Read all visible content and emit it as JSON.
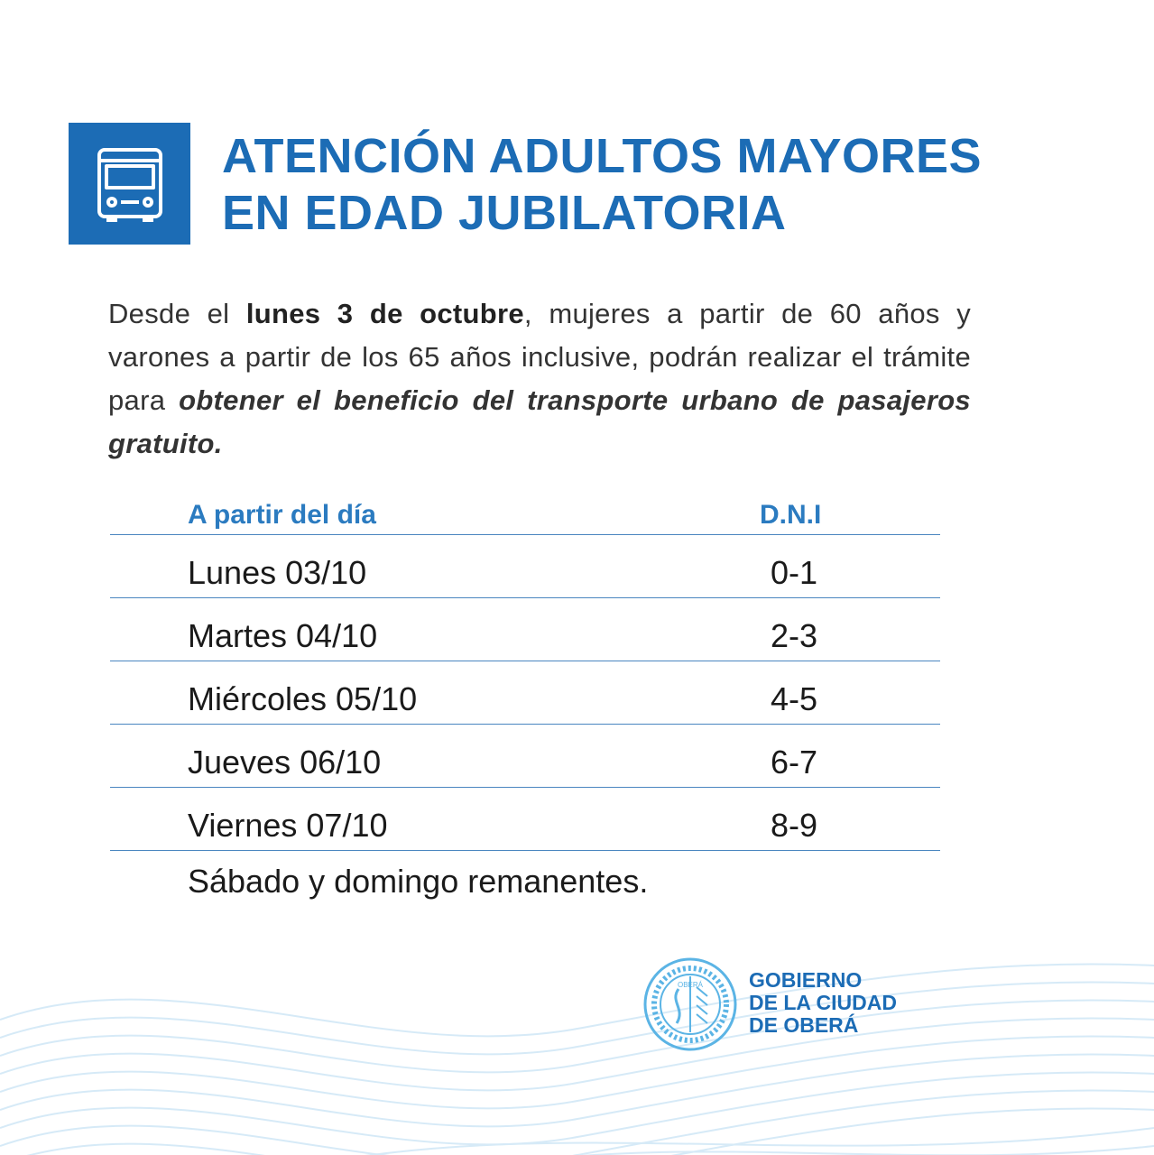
{
  "header": {
    "bus_icon": "bus-icon",
    "title_line1": "ATENCIÓN ADULTOS MAYORES",
    "title_line2": "EN EDAD JUBILATORIA"
  },
  "intro": {
    "part1": "Desde el ",
    "bold": "lunes 3 de octubre",
    "part2": ", mujeres a partir de 60 años y varones a partir de los 65 años inclusive, podrán realizar el trámite para ",
    "italic": "obtener el beneficio del transporte urbano de pasajeros gratuito."
  },
  "table": {
    "headers": {
      "day": "A partir del día",
      "dni": "D.N.I"
    },
    "rows": [
      {
        "day": "Lunes 03/10",
        "dni": "0-1"
      },
      {
        "day": "Martes 04/10",
        "dni": "2-3"
      },
      {
        "day": "Miércoles 05/10",
        "dni": "4-5"
      },
      {
        "day": "Jueves 06/10",
        "dni": "6-7"
      },
      {
        "day": "Viernes 07/10",
        "dni": "8-9"
      }
    ]
  },
  "footnote": "Sábado y domingo remanentes.",
  "footer": {
    "seal_icon": "city-seal-icon",
    "seal_text": "OBERÁ",
    "gov_line1": "GOBIERNO",
    "gov_line2": "DE LA CIUDAD",
    "gov_line3": "DE OBERÁ"
  },
  "colors": {
    "brand_blue": "#1c6cb5",
    "header_blue": "#2b7bc0",
    "wave_blue": "#cfe6f5",
    "seal_blue": "#5bb4e5"
  }
}
